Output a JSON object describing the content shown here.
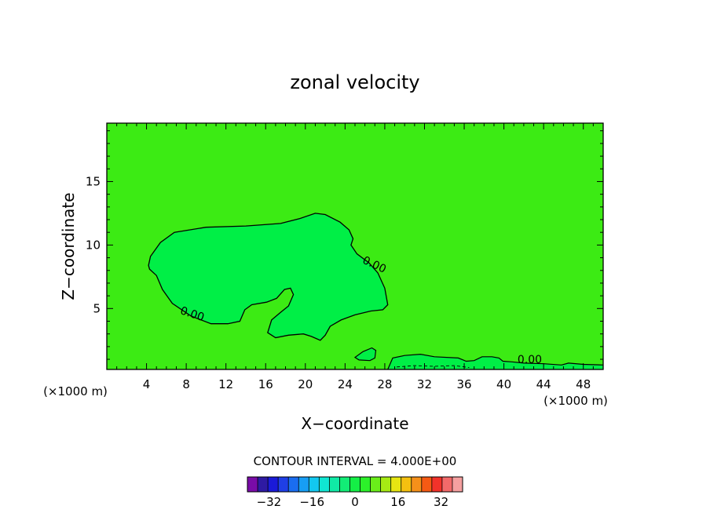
{
  "chart_data": {
    "type": "contour",
    "title": "zonal velocity",
    "xlabel": "X−coordinate",
    "ylabel": "Z−coordinate",
    "x_unit_left": "(×1000 m)",
    "x_unit_right": "(×1000 m)",
    "xlim": [
      0,
      50
    ],
    "ylim": [
      0.2,
      19.6
    ],
    "x_ticks": [
      4,
      8,
      12,
      16,
      20,
      24,
      28,
      32,
      36,
      40,
      44,
      48
    ],
    "y_ticks": [
      5,
      10,
      15
    ],
    "contour_levels": [
      {
        "value": 0,
        "label": "0.00",
        "label_positions": [
          [
            8.5,
            4.3
          ],
          [
            26.8,
            8.2
          ],
          [
            42.6,
            0.7
          ]
        ]
      }
    ],
    "contour_interval_text": "CONTOUR INTERVAL = 4.000E+00",
    "colorbar": {
      "tick_labels": [
        "−32",
        "−16",
        "0",
        "16",
        "32"
      ],
      "tick_values": [
        -32,
        -16,
        0,
        16,
        32
      ],
      "range": [
        -40,
        40
      ],
      "bins": 20,
      "colors": [
        "#7a0ca8",
        "#2e1aa3",
        "#1a1ad8",
        "#1f3fe6",
        "#1a6df0",
        "#179ef5",
        "#12c8f0",
        "#10e6d2",
        "#10eaa6",
        "#12ec76",
        "#14ef46",
        "#2cf12a",
        "#6aee1a",
        "#a6ea14",
        "#e6e612",
        "#f5c010",
        "#f5901a",
        "#f55a14",
        "#f2322a",
        "#f26a6a",
        "#f5a0a0"
      ]
    },
    "background_color": "#3ceb14",
    "region_color": "#00ef46",
    "grid": false
  }
}
